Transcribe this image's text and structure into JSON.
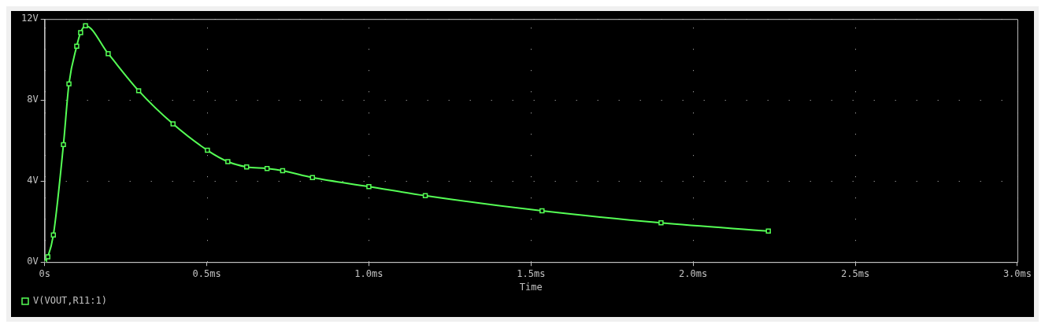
{
  "chart_data": {
    "type": "line",
    "xlabel": "Time",
    "x": [
      0,
      0.01,
      0.027,
      0.058,
      0.075,
      0.099,
      0.111,
      0.126,
      0.196,
      0.29,
      0.396,
      0.502,
      0.565,
      0.623,
      0.686,
      0.734,
      0.826,
      1.0,
      1.174,
      1.534,
      1.901,
      2.232
    ],
    "series": [
      {
        "name": "V(VOUT,R11:1)",
        "color": "#55ff55",
        "values": [
          0,
          0.26,
          1.34,
          5.8,
          8.8,
          10.66,
          11.33,
          11.67,
          10.29,
          8.46,
          6.82,
          5.52,
          4.96,
          4.7,
          4.62,
          4.51,
          4.17,
          3.73,
          3.28,
          2.53,
          1.94,
          1.53
        ]
      }
    ],
    "xlim": [
      0,
      3
    ],
    "xticks": [
      {
        "value": 0,
        "label": "0s"
      },
      {
        "value": 0.5,
        "label": "0.5ms"
      },
      {
        "value": 1,
        "label": "1.0ms"
      },
      {
        "value": 1.5,
        "label": "1.5ms"
      },
      {
        "value": 2,
        "label": "2.0ms"
      },
      {
        "value": 2.5,
        "label": "2.5ms"
      },
      {
        "value": 3,
        "label": "3.0ms"
      }
    ],
    "ylim": [
      0,
      12
    ],
    "yticks": [
      {
        "value": 0,
        "label": "0V"
      },
      {
        "value": 4,
        "label": "4V"
      },
      {
        "value": 8,
        "label": "8V"
      },
      {
        "value": 12,
        "label": "12V"
      }
    ],
    "grid": true,
    "legend": "bottom left",
    "marker": "square",
    "line_style": "solid"
  }
}
